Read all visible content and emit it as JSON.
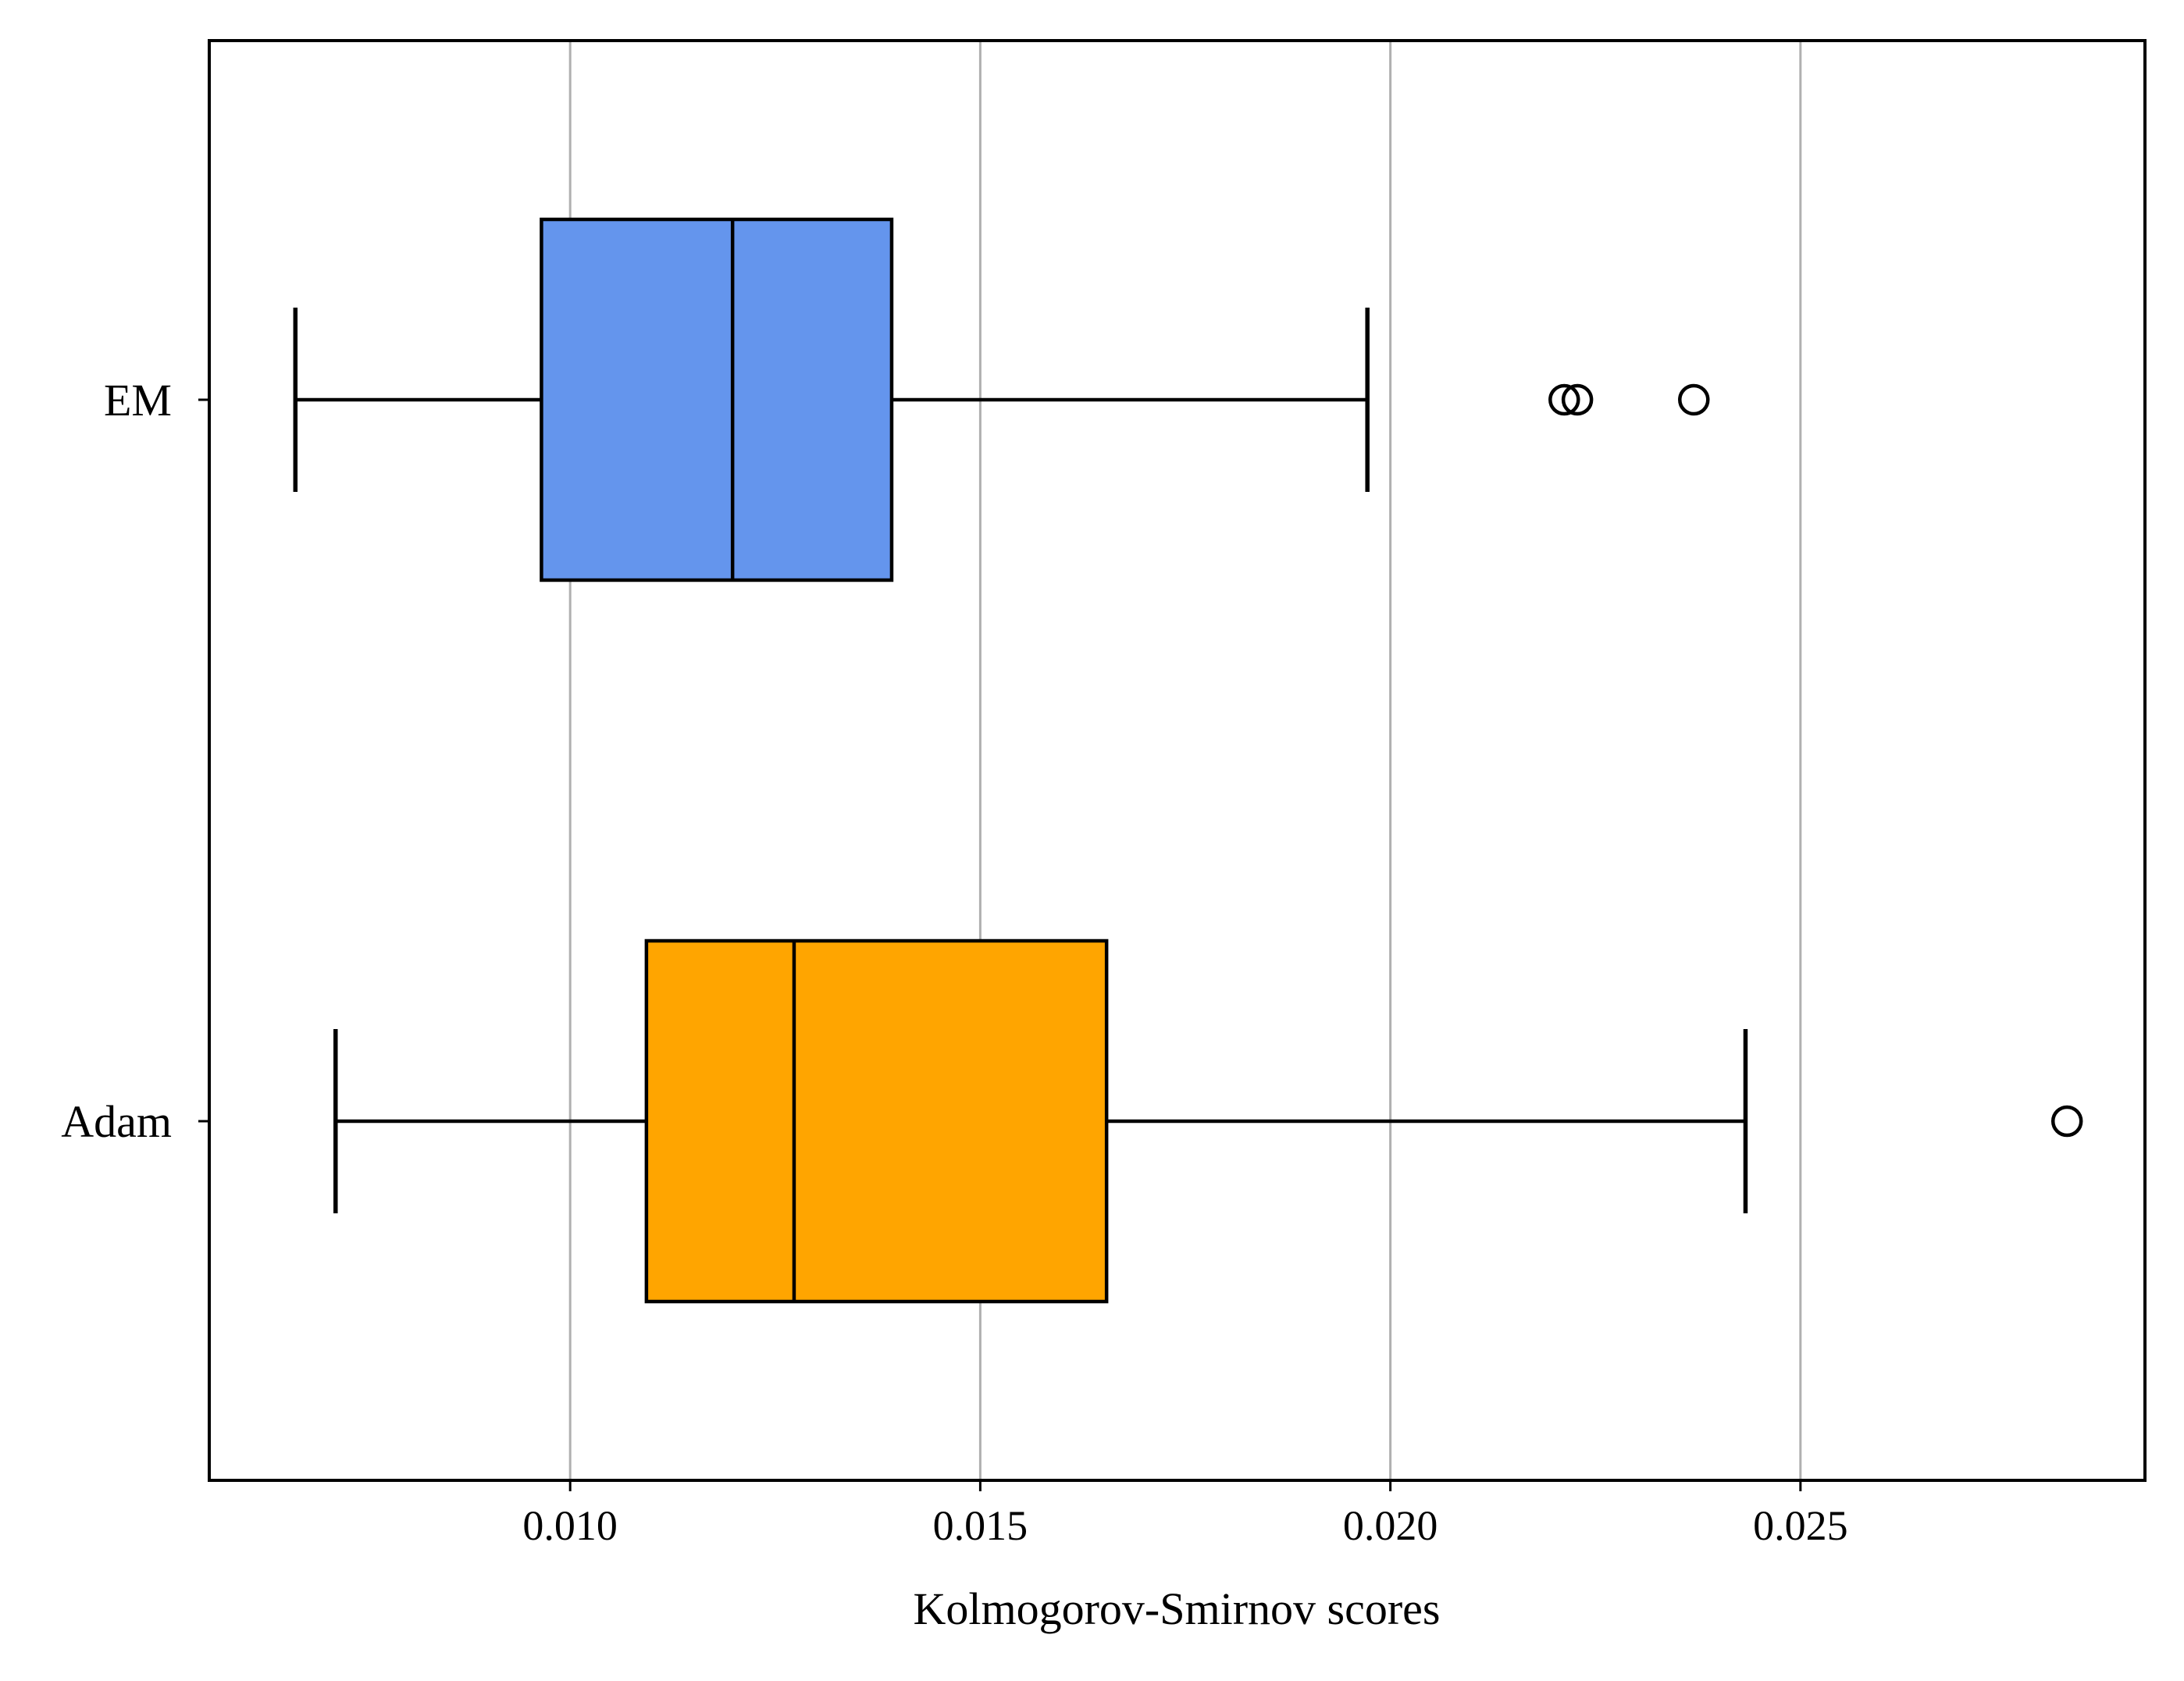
{
  "chart_data": {
    "type": "box",
    "orientation": "horizontal",
    "xlabel": "Kolmogorov-Smirnov scores",
    "xlim": [
      0.0056,
      0.0292
    ],
    "xticks": [
      0.01,
      0.015,
      0.02,
      0.025
    ],
    "xtick_labels": [
      "0.010",
      "0.015",
      "0.020",
      "0.025"
    ],
    "grid": "vertical",
    "categories": [
      "EM",
      "Adam"
    ],
    "series": [
      {
        "name": "EM",
        "color": "#6495ED",
        "whisker_low": 0.00665,
        "q1": 0.00965,
        "median": 0.01198,
        "q3": 0.01392,
        "whisker_high": 0.01972,
        "outliers": [
          0.02212,
          0.02228,
          0.0237
        ]
      },
      {
        "name": "Adam",
        "color": "#FFA500",
        "whisker_low": 0.00714,
        "q1": 0.01093,
        "median": 0.01273,
        "q3": 0.01654,
        "whisker_high": 0.02433,
        "outliers": [
          0.02825
        ]
      }
    ]
  }
}
